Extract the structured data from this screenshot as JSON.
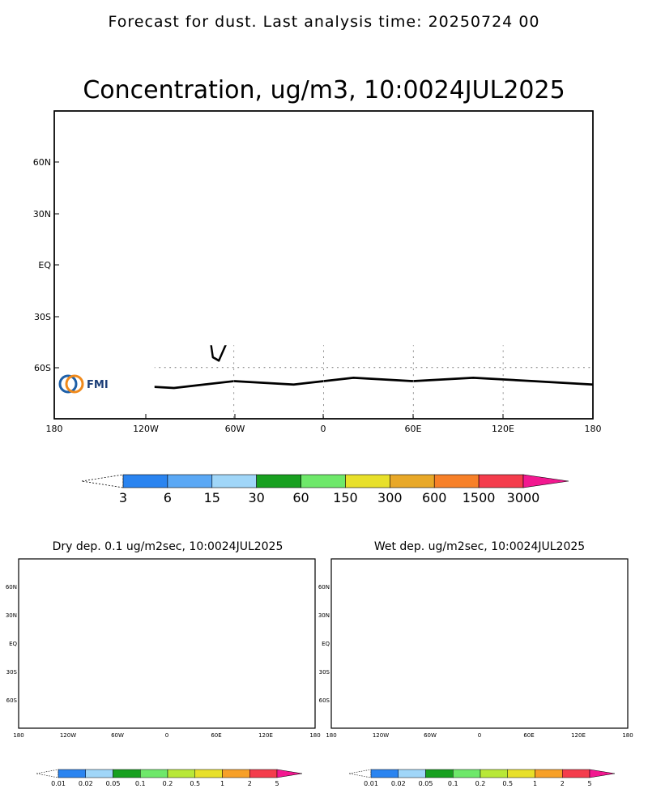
{
  "header": {
    "forecast_title": "Forecast for dust. Last analysis time: 20250724 00"
  },
  "main_map": {
    "title": "Concentration, ug/m3, 10:0024JUL2025",
    "lat_labels": [
      "60N",
      "30N",
      "EQ",
      "30S",
      "60S"
    ],
    "lon_labels": [
      "180",
      "120W",
      "60W",
      "0",
      "60E",
      "120E",
      "180"
    ],
    "logo_text": "FMI"
  },
  "main_colorbar": {
    "labels": [
      "3",
      "6",
      "15",
      "30",
      "60",
      "150",
      "300",
      "600",
      "1500",
      "3000"
    ],
    "colors": [
      "#2a84f0",
      "#5aa8f5",
      "#a0d6f8",
      "#18a020",
      "#6ee86a",
      "#e8e02a",
      "#e8a828",
      "#f78028",
      "#f43c4c",
      "#f21890"
    ]
  },
  "dry_map": {
    "title": "Dry dep. 0.1 ug/m2sec, 10:0024JUL2025",
    "lat_labels": [
      "60N",
      "30N",
      "EQ",
      "30S",
      "60S"
    ],
    "lon_labels": [
      "180",
      "120W",
      "60W",
      "0",
      "60E",
      "120E",
      "180"
    ]
  },
  "wet_map": {
    "title": "Wet dep. ug/m2sec, 10:0024JUL2025",
    "lat_labels": [
      "60N",
      "30N",
      "EQ",
      "30S",
      "60S"
    ],
    "lon_labels": [
      "180",
      "120W",
      "60W",
      "0",
      "60E",
      "120E",
      "180"
    ]
  },
  "small_colorbar": {
    "labels": [
      "0.01",
      "0.02",
      "0.05",
      "0.1",
      "0.2",
      "0.5",
      "1",
      "2",
      "5"
    ],
    "colors": [
      "#2a84f0",
      "#a0d6f8",
      "#18a020",
      "#6ee86a",
      "#b8e838",
      "#e8e02a",
      "#f7a028",
      "#f43c4c",
      "#f21890"
    ]
  }
}
